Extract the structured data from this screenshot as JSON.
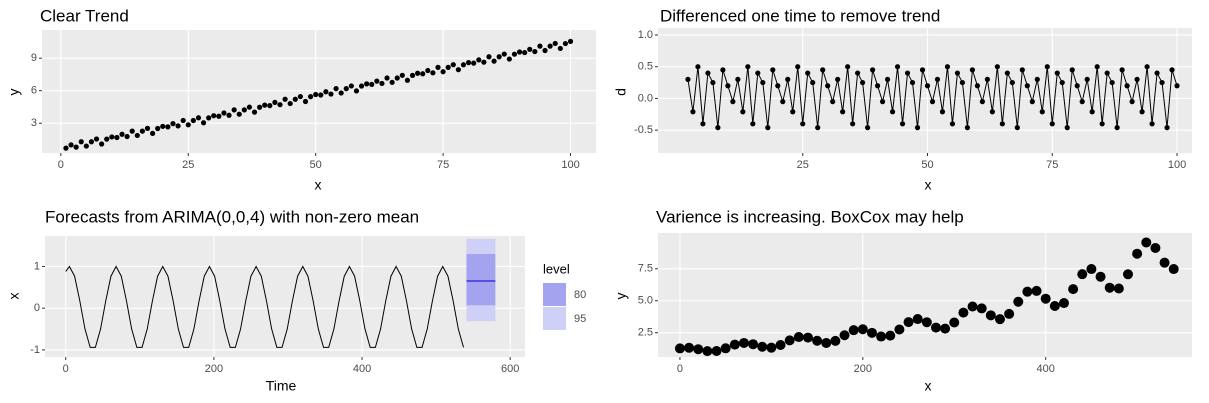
{
  "chart_data": [
    {
      "type": "scatter",
      "title": "Clear Trend",
      "xlabel": "x",
      "ylabel": "y",
      "xlim": [
        -3.7,
        105
      ],
      "ylim": [
        0.25,
        11.6
      ],
      "xticks": [
        0,
        25,
        50,
        75,
        100
      ],
      "yticks": [
        3,
        6,
        9
      ],
      "grid": true,
      "series": [
        {
          "color": "#000000",
          "x": [
            1,
            2,
            3,
            4,
            5,
            6,
            7,
            8,
            9,
            10,
            11,
            12,
            13,
            14,
            15,
            16,
            17,
            18,
            19,
            20,
            21,
            22,
            23,
            24,
            25,
            26,
            27,
            28,
            29,
            30,
            31,
            32,
            33,
            34,
            35,
            36,
            37,
            38,
            39,
            40,
            41,
            42,
            43,
            44,
            45,
            46,
            47,
            48,
            49,
            50,
            51,
            52,
            53,
            54,
            55,
            56,
            57,
            58,
            59,
            60,
            61,
            62,
            63,
            64,
            65,
            66,
            67,
            68,
            69,
            70,
            71,
            72,
            73,
            74,
            75,
            76,
            77,
            78,
            79,
            80,
            81,
            82,
            83,
            84,
            85,
            86,
            87,
            88,
            89,
            90,
            91,
            92,
            93,
            94,
            95,
            96,
            97,
            98,
            99,
            100
          ],
          "values": [
            0.7,
            1.0,
            0.79,
            1.29,
            0.89,
            1.29,
            1.54,
            1.08,
            1.53,
            1.73,
            1.68,
            1.98,
            1.77,
            2.27,
            1.87,
            2.27,
            2.52,
            2.06,
            2.51,
            2.71,
            2.66,
            2.96,
            2.75,
            3.25,
            2.85,
            3.25,
            3.5,
            3.04,
            3.49,
            3.69,
            3.64,
            3.94,
            3.73,
            4.23,
            3.83,
            4.23,
            4.48,
            4.02,
            4.47,
            4.67,
            4.62,
            4.92,
            4.71,
            5.21,
            4.81,
            5.21,
            5.46,
            5.0,
            5.45,
            5.65,
            5.6,
            5.9,
            5.69,
            6.19,
            5.79,
            6.19,
            6.44,
            5.98,
            6.43,
            6.63,
            6.58,
            6.88,
            6.67,
            7.17,
            6.77,
            7.17,
            7.42,
            6.96,
            7.41,
            7.61,
            7.56,
            7.86,
            7.65,
            8.15,
            7.75,
            8.15,
            8.4,
            7.94,
            8.39,
            8.59,
            8.54,
            8.84,
            8.63,
            9.13,
            8.73,
            9.13,
            9.38,
            8.92,
            9.37,
            9.57,
            9.52,
            9.82,
            9.61,
            10.11,
            9.71,
            10.11,
            10.36,
            9.9,
            10.35,
            10.55
          ]
        }
      ]
    },
    {
      "type": "line",
      "markers": true,
      "title": "Differenced one time to remove trend",
      "xlabel": "x",
      "ylabel": "d",
      "xlim": [
        -4,
        103
      ],
      "ylim": [
        -0.86,
        1.11
      ],
      "xticks": [
        25,
        50,
        75,
        100
      ],
      "yticks": [
        -0.5,
        {
          "value": 0,
          "label": "0.0"
        },
        0.5,
        {
          "value": 1,
          "label": "1.0"
        }
      ],
      "grid": true,
      "series": [
        {
          "color": "#000000",
          "x": [
            2,
            3,
            4,
            5,
            6,
            7,
            8,
            9,
            10,
            11,
            12,
            13,
            14,
            15,
            16,
            17,
            18,
            19,
            20,
            21,
            22,
            23,
            24,
            25,
            26,
            27,
            28,
            29,
            30,
            31,
            32,
            33,
            34,
            35,
            36,
            37,
            38,
            39,
            40,
            41,
            42,
            43,
            44,
            45,
            46,
            47,
            48,
            49,
            50,
            51,
            52,
            53,
            54,
            55,
            56,
            57,
            58,
            59,
            60,
            61,
            62,
            63,
            64,
            65,
            66,
            67,
            68,
            69,
            70,
            71,
            72,
            73,
            74,
            75,
            76,
            77,
            78,
            79,
            80,
            81,
            82,
            83,
            84,
            85,
            86,
            87,
            88,
            89,
            90,
            91,
            92,
            93,
            94,
            95,
            96,
            97,
            98,
            99,
            100
          ],
          "values": [
            0.3,
            -0.21,
            0.5,
            -0.4,
            0.4,
            0.25,
            -0.46,
            0.45,
            0.2,
            -0.05,
            0.3,
            -0.21,
            0.5,
            -0.4,
            0.4,
            0.25,
            -0.46,
            0.45,
            0.2,
            -0.05,
            0.3,
            -0.21,
            0.5,
            -0.4,
            0.4,
            0.25,
            -0.46,
            0.45,
            0.2,
            -0.05,
            0.3,
            -0.21,
            0.5,
            -0.4,
            0.4,
            0.25,
            -0.46,
            0.45,
            0.2,
            -0.05,
            0.3,
            -0.21,
            0.5,
            -0.4,
            0.4,
            0.25,
            -0.46,
            0.45,
            0.2,
            -0.05,
            0.3,
            -0.21,
            0.5,
            -0.4,
            0.4,
            0.25,
            -0.46,
            0.45,
            0.2,
            -0.05,
            0.3,
            -0.21,
            0.5,
            -0.4,
            0.4,
            0.25,
            -0.46,
            0.45,
            0.2,
            -0.05,
            0.3,
            -0.21,
            0.5,
            -0.4,
            0.4,
            0.25,
            -0.46,
            0.45,
            0.2,
            -0.05,
            0.3,
            -0.21,
            0.5,
            -0.4,
            0.4,
            0.25,
            -0.46,
            0.45,
            0.2,
            -0.05,
            0.3,
            -0.21,
            0.5,
            -0.4,
            0.4,
            0.25,
            -0.46,
            0.45,
            0.2
          ]
        }
      ]
    },
    {
      "type": "line",
      "title": "Forecasts from ARIMA(0,0,4) with non-zero mean",
      "xlabel": "Time",
      "ylabel": "x",
      "xlim": [
        -28,
        620
      ],
      "ylim": [
        -1.17,
        1.73
      ],
      "xticks": [
        0,
        200,
        400,
        600
      ],
      "yticks": [
        -1,
        0,
        1
      ],
      "grid": true,
      "legend_title": "level",
      "bands": [
        {
          "name": 80,
          "color": "#a3a3f0",
          "x": [
            541,
            580
          ],
          "low": [
            0.07,
            0.07
          ],
          "high": [
            1.3,
            1.3
          ]
        },
        {
          "name": 95,
          "color": "#cfcff7",
          "x": [
            541,
            580
          ],
          "low": [
            -0.31,
            -0.31
          ],
          "high": [
            1.66,
            1.66
          ]
        }
      ],
      "series": [
        {
          "color": "#000000",
          "x": [
            0,
            5,
            12,
            19,
            26,
            33,
            40,
            47,
            54,
            61,
            68,
            75,
            82,
            89,
            96,
            103,
            110,
            117,
            124,
            131,
            138,
            145,
            152,
            159,
            166,
            173,
            180,
            187,
            194,
            201,
            208,
            215,
            222,
            229,
            236,
            243,
            250,
            257,
            264,
            271,
            278,
            285,
            292,
            299,
            306,
            313,
            320,
            327,
            334,
            341,
            348,
            355,
            362,
            369,
            376,
            383,
            390,
            397,
            404,
            411,
            418,
            425,
            432,
            439,
            446,
            453,
            460,
            467,
            474,
            481,
            488,
            495,
            502,
            509,
            516,
            523,
            530,
            537
          ],
          "values": [
            0.88,
            1,
            0.766,
            0.174,
            -0.5,
            -0.94,
            -0.94,
            -0.5,
            0.174,
            0.766,
            1,
            0.766,
            0.174,
            -0.5,
            -0.94,
            -0.94,
            -0.5,
            0.174,
            0.766,
            1,
            0.766,
            0.174,
            -0.5,
            -0.94,
            -0.94,
            -0.5,
            0.174,
            0.766,
            1,
            0.766,
            0.174,
            -0.5,
            -0.94,
            -0.94,
            -0.5,
            0.174,
            0.766,
            1,
            0.766,
            0.174,
            -0.5,
            -0.94,
            -0.94,
            -0.5,
            0.174,
            0.766,
            1,
            0.766,
            0.174,
            -0.5,
            -0.94,
            -0.94,
            -0.5,
            0.174,
            0.766,
            1,
            0.766,
            0.174,
            -0.5,
            -0.94,
            -0.94,
            -0.5,
            0.174,
            0.766,
            1,
            0.766,
            0.174,
            -0.5,
            -0.94,
            -0.94,
            -0.5,
            0.174,
            0.766,
            1,
            0.766,
            0.174,
            -0.5,
            -0.94
          ]
        },
        {
          "color": "#0000cc",
          "x": [
            541,
            580
          ],
          "values": [
            0.65,
            0.65
          ]
        }
      ]
    },
    {
      "type": "scatter",
      "title": "Varience is increasing. BoxCox may help",
      "xlabel": "x",
      "ylabel": "y",
      "xlim": [
        -24,
        560
      ],
      "ylim": [
        0.6,
        10.3
      ],
      "xticks": [
        0,
        200,
        400
      ],
      "yticks": [
        2.5,
        {
          "value": 5,
          "label": "5.0"
        },
        7.5
      ],
      "grid": true,
      "series": [
        {
          "color": "#000000",
          "x": [
            0,
            10,
            20,
            30,
            40,
            50,
            60,
            70,
            80,
            90,
            100,
            110,
            120,
            130,
            140,
            150,
            160,
            170,
            180,
            190,
            200,
            210,
            220,
            230,
            240,
            250,
            260,
            270,
            280,
            290,
            300,
            310,
            320,
            330,
            340,
            350,
            360,
            370,
            380,
            390,
            400,
            410,
            420,
            430,
            440,
            450,
            460,
            470,
            480,
            490,
            500,
            510,
            520,
            530,
            540
          ],
          "values": [
            1.27,
            1.32,
            1.21,
            1.06,
            1.07,
            1.28,
            1.57,
            1.7,
            1.6,
            1.4,
            1.33,
            1.54,
            1.9,
            2.16,
            2.12,
            1.87,
            1.7,
            1.86,
            2.3,
            2.7,
            2.77,
            2.49,
            2.2,
            2.27,
            2.75,
            3.33,
            3.57,
            3.32,
            2.9,
            2.82,
            3.3,
            4.07,
            4.55,
            4.4,
            3.86,
            3.56,
            3.97,
            4.92,
            5.71,
            5.77,
            5.16,
            4.59,
            4.82,
            5.91,
            7.08,
            7.48,
            6.88,
            6.02,
            5.96,
            7.07,
            8.68,
            9.56,
            9.13,
            7.98,
            7.48
          ]
        }
      ]
    }
  ]
}
